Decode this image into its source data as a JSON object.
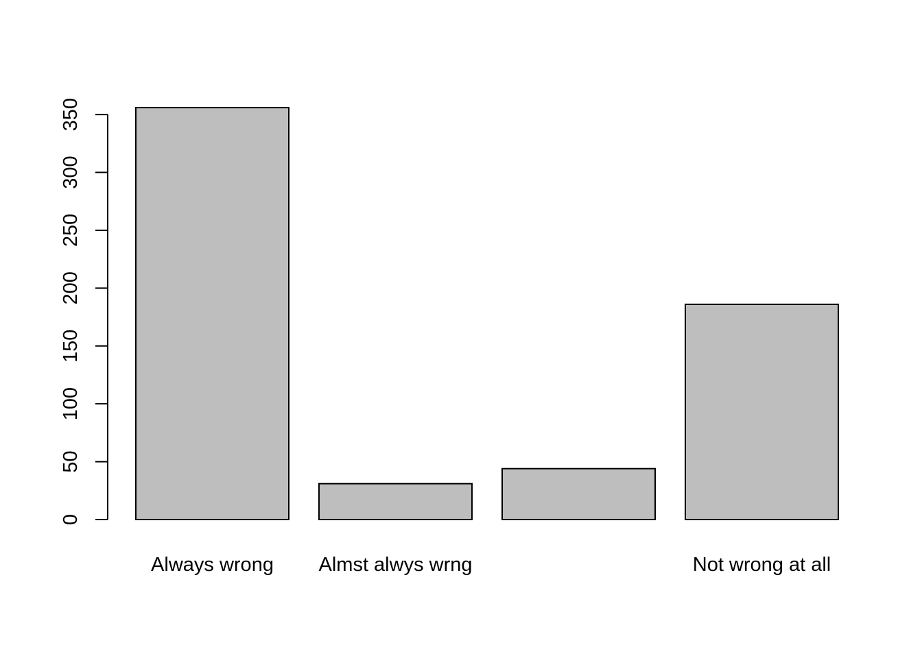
{
  "chart_data": {
    "type": "bar",
    "categories": [
      "Always wrong",
      "Almst alwys wrng",
      "",
      "Not wrong at all"
    ],
    "values": [
      356,
      31,
      44,
      186
    ],
    "title": "",
    "xlabel": "",
    "ylabel": "",
    "yticks": [
      0,
      50,
      100,
      150,
      200,
      250,
      300,
      350
    ],
    "ylim": [
      0,
      356
    ],
    "bar_color": "#bebebe",
    "border_color": "#000000",
    "grid": false,
    "legend": "none"
  }
}
